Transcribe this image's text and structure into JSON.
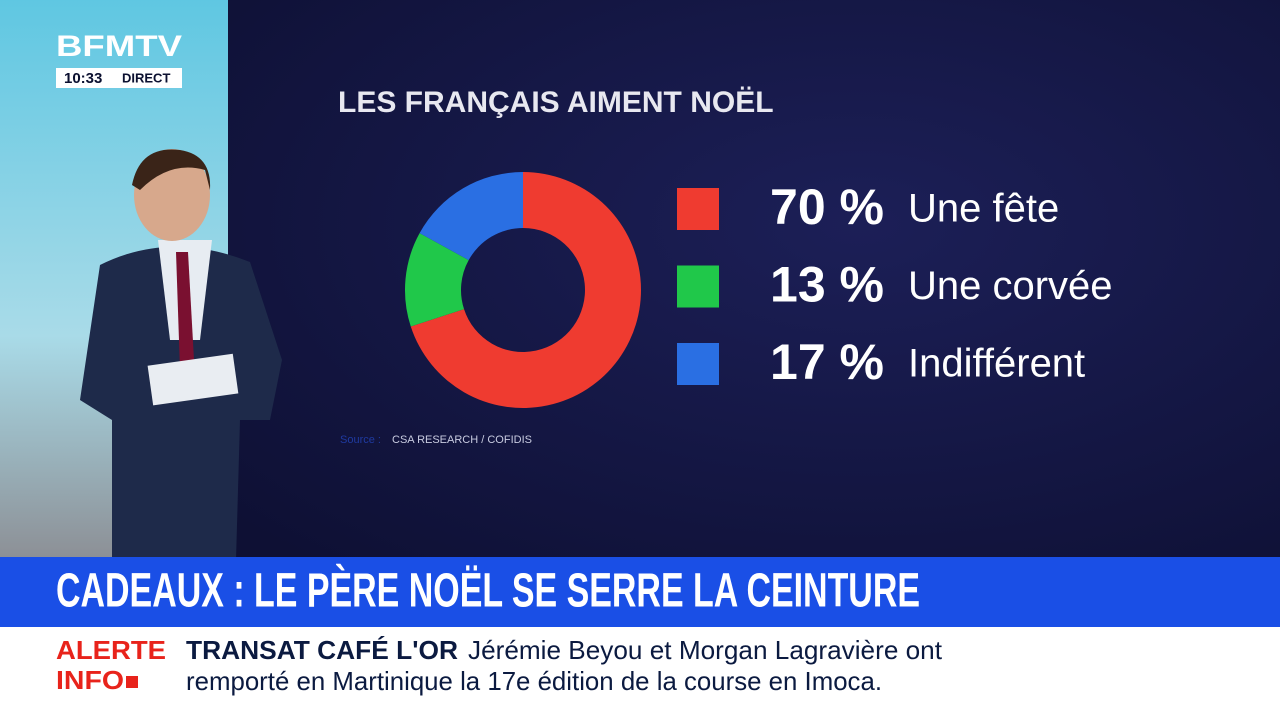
{
  "channel": {
    "logo": "BFMTV",
    "time": "10:33",
    "live": "DIRECT"
  },
  "chart_data": {
    "type": "donut",
    "title": "LES FRANÇAIS AIMENT NOËL",
    "categories": [
      "Une fête",
      "Une corvée",
      "Indifférent"
    ],
    "values": [
      70,
      13,
      17
    ],
    "value_labels": [
      "70 %",
      "13 %",
      "17 %"
    ],
    "colors": [
      "#ef3b30",
      "#20c84a",
      "#2a6fe3"
    ],
    "source_label": "Source :",
    "source": "CSA RESEARCH / COFIDIS"
  },
  "headline": "CADEAUX : LE PÈRE NOËL SE SERRE LA CEINTURE",
  "ticker": {
    "label": [
      "ALERTE",
      "INFO"
    ],
    "topic": "TRANSAT CAFÉ L'OR",
    "lines": [
      "Jérémie Beyou et Morgan Lagravière ont",
      "remporté en Martinique la 17e édition de la course en Imoca."
    ]
  }
}
